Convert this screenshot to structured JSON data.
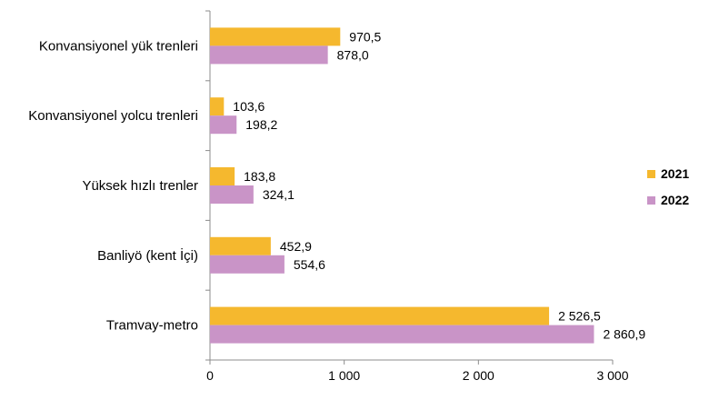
{
  "chart_data": {
    "type": "bar",
    "orientation": "horizontal",
    "categories": [
      "Konvansiyonel yük trenleri",
      "Konvansiyonel yolcu trenleri",
      "Yüksek hızlı trenler",
      "Banliyö (kent İçi)",
      "Tramvay-metro"
    ],
    "series": [
      {
        "name": "2021",
        "color": "#f5b82e",
        "values": [
          970.5,
          103.6,
          183.8,
          452.9,
          2526.5
        ],
        "labels": [
          "970,5",
          "103,6",
          "183,8",
          "452,9",
          "2 526,5"
        ]
      },
      {
        "name": "2022",
        "color": "#c994c7",
        "values": [
          878.0,
          198.2,
          324.1,
          554.6,
          2860.9
        ],
        "labels": [
          "878,0",
          "198,2",
          "324,1",
          "554,6",
          "2 860,9"
        ]
      }
    ],
    "xlim": [
      0,
      3000
    ],
    "xticks": [
      0,
      1000,
      2000,
      3000
    ],
    "xtick_labels": [
      "0",
      "1 000",
      "2 000",
      "3 000"
    ],
    "title": "",
    "xlabel": "",
    "ylabel": "",
    "grid": false,
    "legend_position": "right"
  }
}
